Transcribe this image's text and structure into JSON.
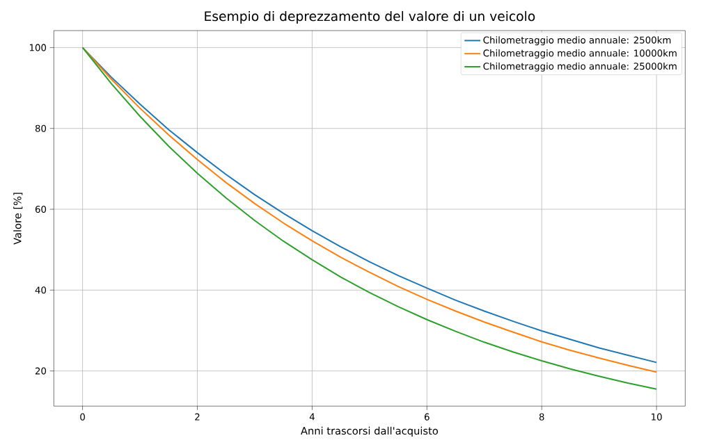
{
  "chart_data": {
    "type": "line",
    "title": "Esempio di deprezzamento del valore di un veicolo",
    "xlabel": "Anni trascorsi dall'acquisto",
    "ylabel": "Valore [%]",
    "x": [
      0,
      0.5,
      1,
      1.5,
      2,
      2.5,
      3,
      3.5,
      4,
      4.5,
      5,
      5.5,
      6,
      6.5,
      7,
      7.5,
      8,
      8.5,
      9,
      9.5,
      10
    ],
    "series": [
      {
        "name": "Chilometraggio medio annuale: 2500km",
        "color": "#1f77b4",
        "values": [
          100,
          92.7,
          86,
          79.7,
          74,
          68.6,
          63.6,
          59.0,
          54.7,
          50.7,
          47.0,
          43.6,
          40.5,
          37.5,
          34.8,
          32.3,
          29.9,
          27.8,
          25.7,
          23.9,
          22.1
        ]
      },
      {
        "name": "Chilometraggio medio annuale: 10000km",
        "color": "#ff7f0e",
        "values": [
          100,
          92.2,
          85,
          78.4,
          72.3,
          66.6,
          61.4,
          56.6,
          52.2,
          48.1,
          44.4,
          40.9,
          37.7,
          34.8,
          32.1,
          29.6,
          27.2,
          25.1,
          23.2,
          21.4,
          19.7
        ]
      },
      {
        "name": "Chilometraggio medio annuale: 25000km",
        "color": "#2ca02c",
        "values": [
          100,
          91.1,
          83,
          75.6,
          68.9,
          62.8,
          57.2,
          52.1,
          47.5,
          43.2,
          39.4,
          35.9,
          32.7,
          29.8,
          27.1,
          24.7,
          22.5,
          20.5,
          18.7,
          17.0,
          15.5
        ]
      }
    ],
    "xlim": [
      -0.5,
      10.5
    ],
    "ylim": [
      11.3,
      104.2
    ],
    "xticks": [
      0,
      2,
      4,
      6,
      8,
      10
    ],
    "yticks": [
      20,
      40,
      60,
      80,
      100
    ],
    "grid": true,
    "legend": "top right",
    "marker": "none",
    "line_style": "solid"
  }
}
